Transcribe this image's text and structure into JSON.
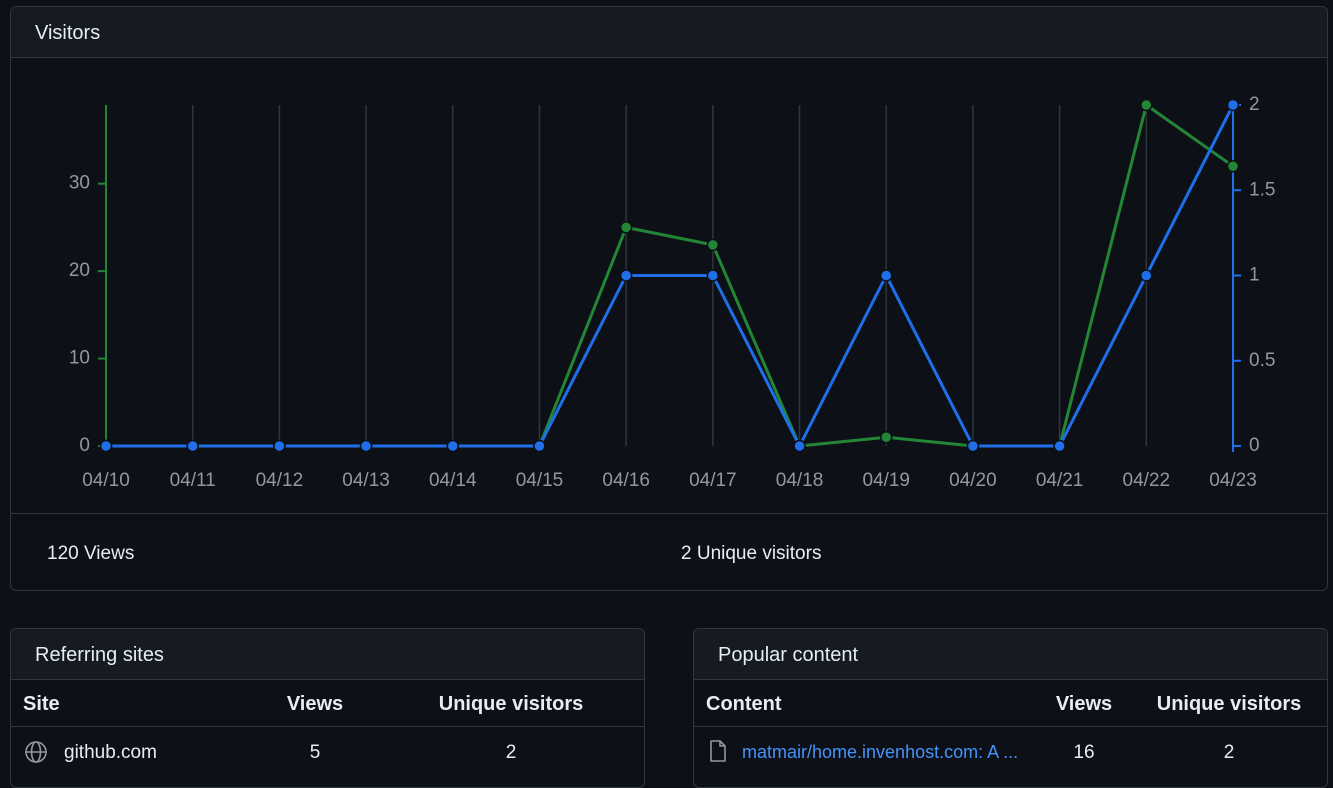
{
  "visitors": {
    "title": "Visitors",
    "views_summary": "120 Views",
    "unique_summary": "2 Unique visitors"
  },
  "chart_data": {
    "type": "line",
    "categories": [
      "04/10",
      "04/11",
      "04/12",
      "04/13",
      "04/14",
      "04/15",
      "04/16",
      "04/17",
      "04/18",
      "04/19",
      "04/20",
      "04/21",
      "04/22",
      "04/23"
    ],
    "series": [
      {
        "color": "#238636",
        "values": [
          0,
          0,
          0,
          0,
          0,
          0,
          25,
          23,
          0,
          1,
          0,
          0,
          39,
          32
        ]
      },
      {
        "color": "#1f6feb",
        "axis": "y2",
        "values": [
          0,
          0,
          0,
          0,
          0,
          0,
          1,
          1,
          0,
          1,
          0,
          0,
          1,
          2
        ]
      }
    ],
    "ylim": [
      0,
      39
    ],
    "yticks": [
      0,
      10,
      20,
      30
    ],
    "y2lim": [
      0,
      2
    ],
    "y2ticks": [
      0,
      0.5,
      1,
      1.5,
      2
    ],
    "grid": true
  },
  "referring_sites": {
    "title": "Referring sites",
    "columns": [
      "Site",
      "Views",
      "Unique visitors"
    ],
    "rows": [
      [
        "github.com",
        5,
        2
      ]
    ]
  },
  "popular_content": {
    "title": "Popular content",
    "columns": [
      "Content",
      "Views",
      "Unique visitors"
    ],
    "rows": [
      [
        "matmair/home.invenhost.com: A ...",
        16,
        2
      ]
    ]
  }
}
